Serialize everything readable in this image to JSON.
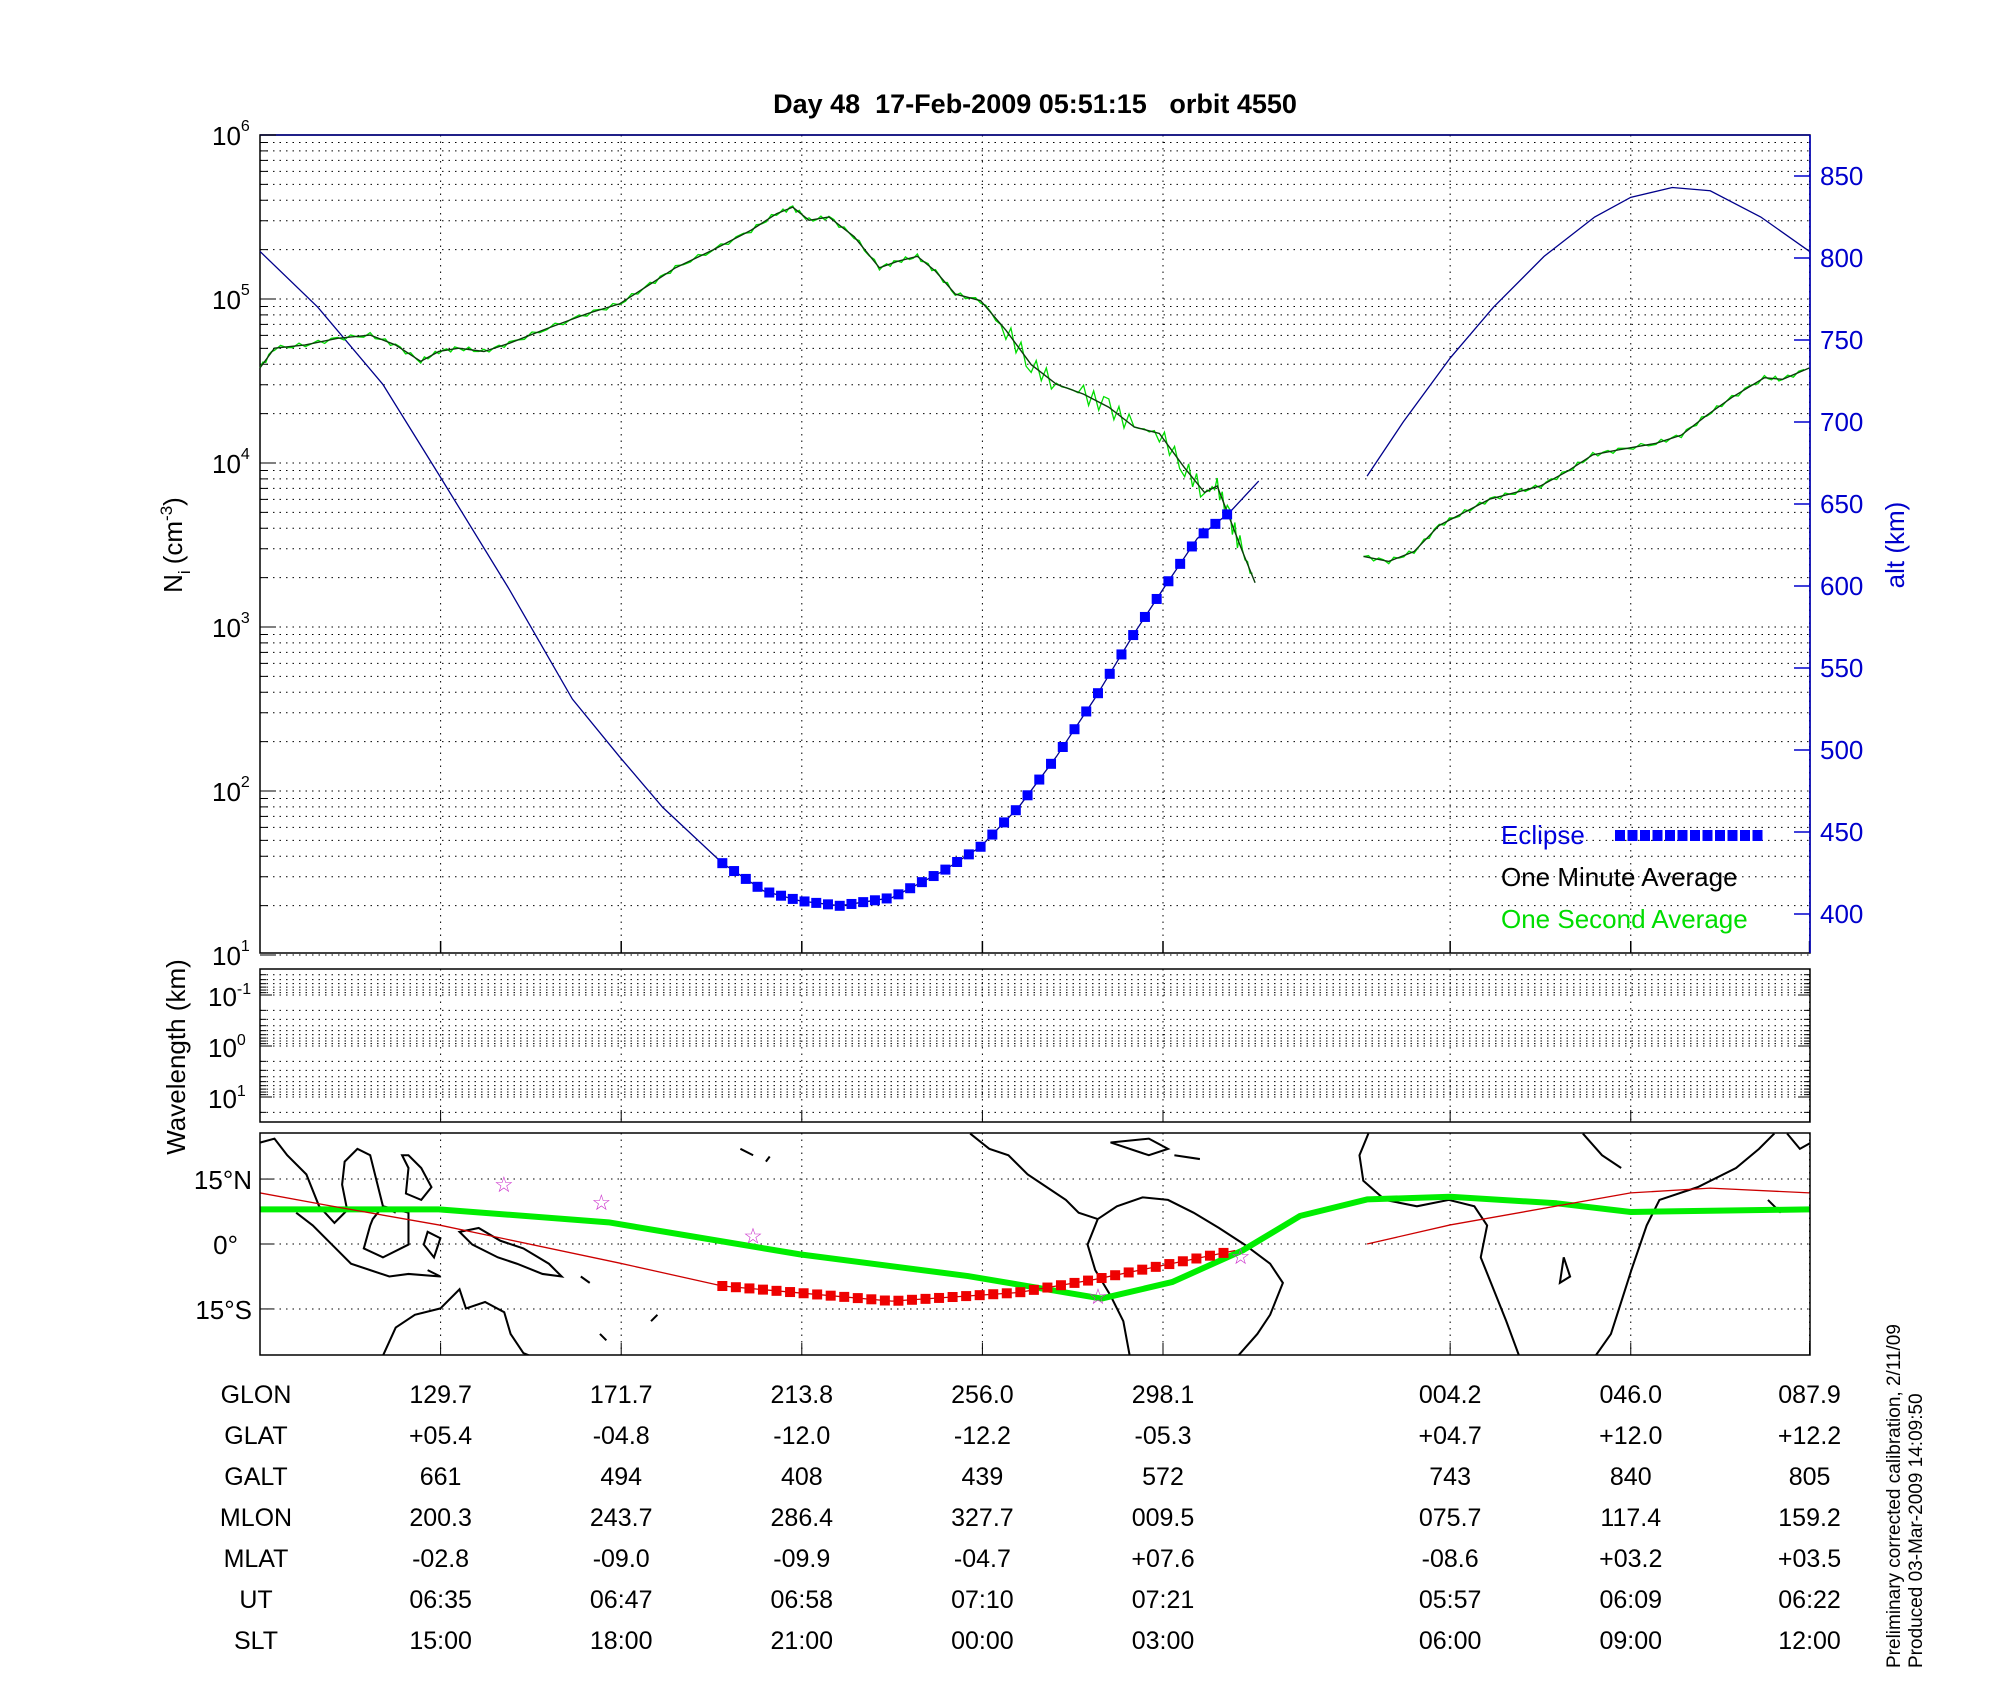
{
  "chart_data": [
    {
      "type": "line",
      "title": "Day 48  17-Feb-2009 05:51:15   orbit 4550",
      "ylabel": "N",
      "ylabel_sub": "i",
      "ylabel_unit": "(cm",
      "ylabel_exp": "-3",
      "ylabel_close": ")",
      "y2label": "alt (km)",
      "yscale": "log",
      "ylim_log10": [
        1,
        6
      ],
      "y_ticks_log10": [
        1,
        2,
        3,
        4,
        5,
        6
      ],
      "y2lim": [
        375,
        880
      ],
      "y2_ticks": [
        400,
        450,
        500,
        550,
        600,
        650,
        700,
        750,
        800,
        850
      ],
      "x_unit": "orbit tick index (tick columns of table below)",
      "x_ticks": [
        1,
        2,
        3,
        4,
        5,
        6.59,
        7.59,
        8.58
      ],
      "grid": true,
      "legend_position": "bottom-right",
      "legend": {
        "eclipse": "Eclipse",
        "one_minute": "One Minute Average",
        "one_second": "One Second Average"
      },
      "colors": {
        "eclipse": "#0000ff",
        "altitude": "#00008b",
        "one_minute": "#0b3d0b",
        "one_second": "#00dd00"
      },
      "series": [
        {
          "name": "One Minute Average",
          "segments": [
            {
              "x": [
                0,
                0.08,
                0.25,
                0.43,
                0.61,
                0.75,
                0.89,
                0.99,
                1.1,
                1.24,
                1.38,
                1.59,
                1.81,
                1.99,
                2.16,
                2.3,
                2.51,
                2.72,
                2.86,
                2.95,
                3.04,
                3.15,
                3.29,
                3.43,
                3.53,
                3.64,
                3.74,
                3.85,
                3.99,
                4.13,
                4.27,
                4.41,
                4.56,
                4.7,
                4.84,
                4.98,
                5.12,
                5.23,
                5.3,
                5.37,
                5.44,
                5.51
              ],
              "log10_ni": [
                4.58,
                4.7,
                4.72,
                4.76,
                4.78,
                4.72,
                4.62,
                4.68,
                4.7,
                4.68,
                4.73,
                4.82,
                4.91,
                4.97,
                5.09,
                5.19,
                5.3,
                5.42,
                5.52,
                5.56,
                5.48,
                5.5,
                5.38,
                5.19,
                5.23,
                5.26,
                5.17,
                5.03,
                4.99,
                4.81,
                4.6,
                4.48,
                4.42,
                4.34,
                4.22,
                4.18,
                3.97,
                3.82,
                3.86,
                3.66,
                3.46,
                3.27
              ]
            },
            {
              "x": [
                6.11,
                6.25,
                6.39,
                6.53,
                6.67,
                6.81,
                6.95,
                7.09,
                7.24,
                7.38,
                7.52,
                7.73,
                7.87,
                8.01,
                8.15,
                8.33,
                8.43,
                8.58
              ],
              "log10_ni": [
                3.43,
                3.4,
                3.46,
                3.62,
                3.7,
                3.78,
                3.82,
                3.86,
                3.95,
                4.05,
                4.08,
                4.12,
                4.17,
                4.29,
                4.4,
                4.52,
                4.51,
                4.58
              ]
            }
          ]
        },
        {
          "name": "Altitude (km)",
          "segments": [
            {
              "x": [
                0,
                0.32,
                0.68,
                0.99,
                1.38,
                1.73,
                1.99,
                2.23,
                2.56,
                2.79,
                2.99,
                3.21,
                3.5,
                3.78,
                3.99,
                4.2,
                4.41,
                4.62,
                4.84,
                5.0,
                5.19,
                5.37,
                5.53
              ],
              "alt": [
                804,
                770,
                723,
                668,
                598,
                531,
                496,
                465,
                431,
                414,
                408,
                405,
                410,
                426,
                441,
                465,
                496,
                531,
                571,
                598,
                629,
                645,
                664
              ]
            },
            {
              "x": [
                6.13,
                6.33,
                6.59,
                6.83,
                7.11,
                7.39,
                7.59,
                7.82,
                8.03,
                8.31,
                8.58
              ],
              "alt": [
                667,
                700,
                739,
                770,
                801,
                825,
                837,
                843,
                841,
                825,
                804
              ]
            }
          ]
        }
      ],
      "eclipse_range_x": [
        2.56,
        5.4
      ]
    },
    {
      "type": "line",
      "ylabel": "Wavelength (km)",
      "yscale": "log",
      "y_tick_labels": [
        {
          "base": "10",
          "exp": "-1"
        },
        {
          "base": "10",
          "exp": "0"
        },
        {
          "base": "10",
          "exp": "1"
        }
      ],
      "grid": true
    },
    {
      "type": "line",
      "lat_tick_labels": [
        "15°N",
        "0°",
        "15°S"
      ],
      "lat_ticks": [
        15,
        0,
        -15
      ],
      "ylim_lat": [
        -25.6,
        25.6
      ],
      "colors": {
        "track": "#00ee00",
        "footprint": "#cc0000",
        "stars": "#cc33cc",
        "coast": "#000000"
      },
      "series": [
        {
          "name": "green track",
          "x": [
            0,
            0.99,
            1.93,
            2.99,
            3.92,
            4.66,
            5.05,
            5.44,
            5.76,
            6.13,
            6.59,
            7.18,
            7.59,
            8.58
          ],
          "lat": [
            8,
            8,
            5,
            -2.4,
            -7.4,
            -12.6,
            -8.8,
            -1.5,
            6.5,
            10.3,
            10.9,
            9.4,
            7.4,
            8
          ]
        },
        {
          "name": "footprint",
          "segments": [
            {
              "x": [
                0,
                0.39,
                0.99,
                1.99,
                2.56,
                3.5,
                4.2,
                4.62,
                5.4
              ],
              "lat": [
                11.8,
                8.8,
                4.4,
                -4.4,
                -9.7,
                -13.2,
                -11.2,
                -8.2,
                -1.5
              ]
            },
            {
              "x": [
                6.13,
                6.59,
                7.59,
                8.03,
                8.58
              ],
              "lat": [
                0,
                4.4,
                11.8,
                12.9,
                11.8
              ]
            }
          ]
        },
        {
          "name": "stars",
          "x": [
            1.35,
            1.89,
            2.73,
            4.64,
            5.43
          ],
          "lat": [
            13.8,
            9.7,
            2.0,
            -12.0,
            -2.8
          ]
        }
      ]
    }
  ],
  "table": {
    "x_ticks": [
      1,
      2,
      3,
      4,
      5,
      6.59,
      7.59,
      8.58
    ],
    "rows": [
      {
        "label": "GLON",
        "values": [
          "129.7",
          "171.7",
          "213.8",
          "256.0",
          "298.1",
          "004.2",
          "046.0",
          "087.9"
        ]
      },
      {
        "label": "GLAT",
        "values": [
          "+05.4",
          "-04.8",
          "-12.0",
          "-12.2",
          "-05.3",
          "+04.7",
          "+12.0",
          "+12.2"
        ]
      },
      {
        "label": "GALT",
        "values": [
          "661",
          "494",
          "408",
          "439",
          "572",
          "743",
          "840",
          "805"
        ]
      },
      {
        "label": "MLON",
        "values": [
          "200.3",
          "243.7",
          "286.4",
          "327.7",
          "009.5",
          "075.7",
          "117.4",
          "159.2"
        ]
      },
      {
        "label": "MLAT",
        "values": [
          "-02.8",
          "-09.0",
          "-09.9",
          "-04.7",
          "+07.6",
          "-08.6",
          "+03.2",
          "+03.5"
        ]
      },
      {
        "label": "UT",
        "values": [
          "06:35",
          "06:47",
          "06:58",
          "07:10",
          "07:21",
          "05:57",
          "06:09",
          "06:22"
        ]
      },
      {
        "label": "SLT",
        "values": [
          "15:00",
          "18:00",
          "21:00",
          "00:00",
          "03:00",
          "06:00",
          "09:00",
          "12:00"
        ]
      }
    ]
  },
  "footer": {
    "line1": "Preliminary corrected calibration, 2/11/09",
    "line2": "Produced 03-Mar-2009 14:09:50"
  }
}
